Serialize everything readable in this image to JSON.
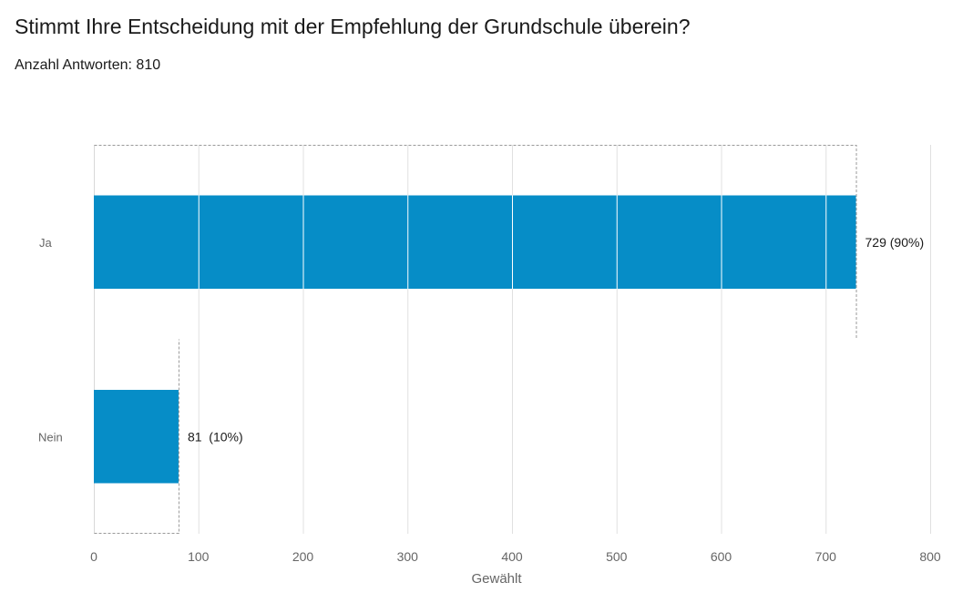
{
  "header": {
    "title": "Stimmt Ihre Entscheidung mit der Empfehlung der Grundschule überein?",
    "subtitle": "Anzahl Antworten: 810"
  },
  "chart_data": {
    "type": "bar",
    "orientation": "horizontal",
    "title": "Stimmt Ihre Entscheidung mit der Empfehlung der Grundschule überein?",
    "subtitle": "Anzahl Antworten: 810",
    "categories": [
      "Ja",
      "Nein"
    ],
    "values": [
      729,
      81
    ],
    "data_labels": [
      "729 (90%)",
      "81  (10%)"
    ],
    "percentages": [
      90,
      10
    ],
    "xlabel": "Gewählt",
    "ylabel": "",
    "xlim": [
      0,
      800
    ],
    "xticks": [
      0,
      100,
      200,
      300,
      400,
      500,
      600,
      700,
      800
    ],
    "grid": true,
    "bar_color": "#068dc7",
    "legend": "none"
  }
}
